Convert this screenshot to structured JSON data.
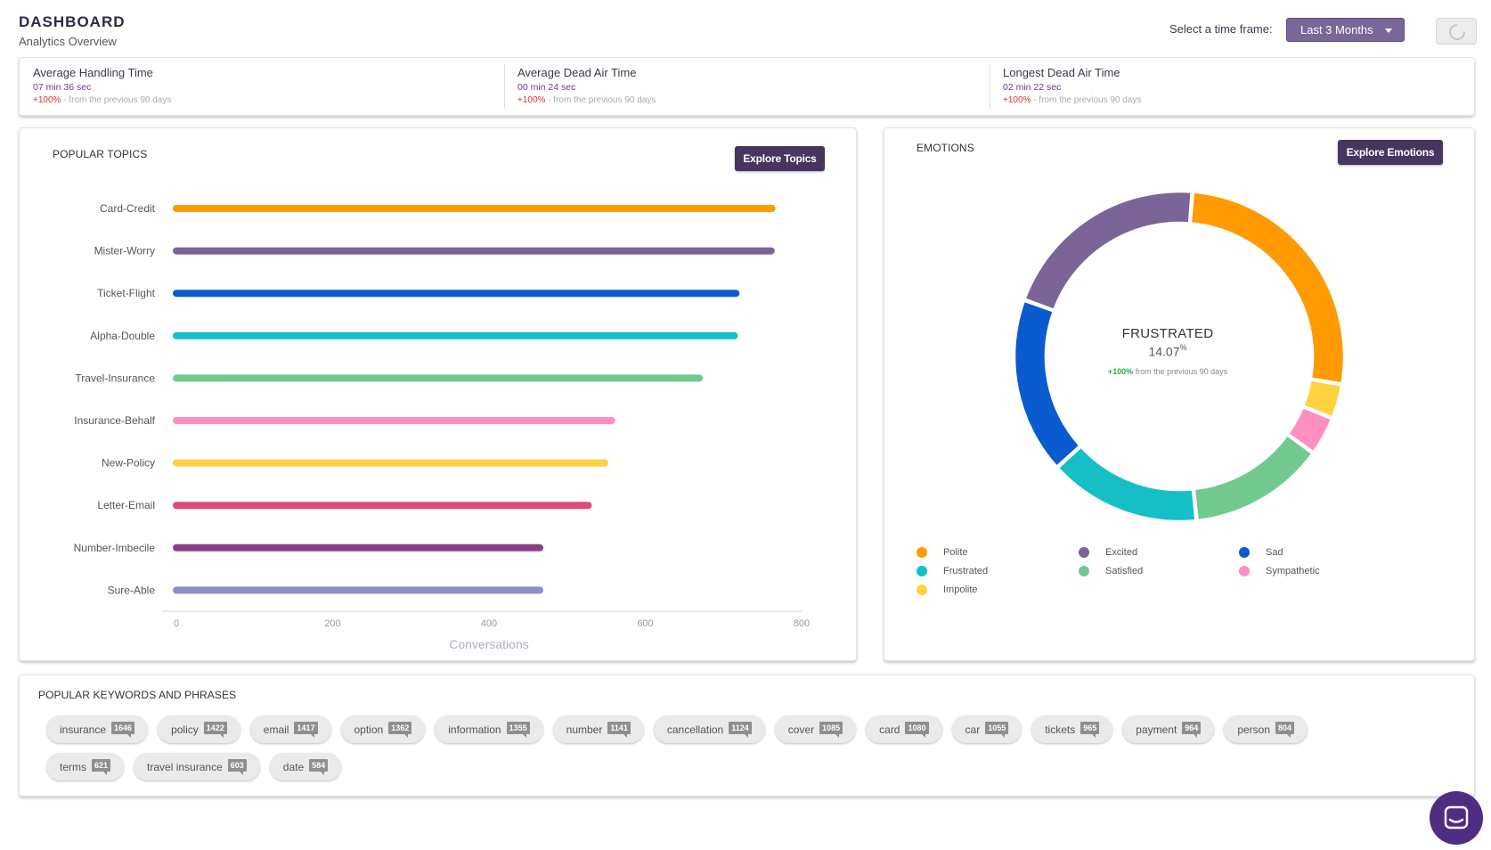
{
  "header": {
    "title": "DASHBOARD",
    "subtitle": "Analytics Overview"
  },
  "timeframe": {
    "label": "Select a time frame:",
    "selected": "Last 3 Months"
  },
  "kpis": [
    {
      "title": "Average Handling Time",
      "value": "07 min 36 sec",
      "change": "+100%",
      "change_note": " - from the previous 90 days"
    },
    {
      "title": "Average Dead Air Time",
      "value": "00 min 24 sec",
      "change": "+100%",
      "change_note": " - from the previous 90 days"
    },
    {
      "title": "Longest Dead Air Time",
      "value": "02 min 22 sec",
      "change": "+100%",
      "change_note": " - from the previous 90 days"
    }
  ],
  "topics": {
    "title": "POPULAR TOPICS",
    "button": "Explore Topics"
  },
  "emotions": {
    "title": "EMOTIONS",
    "button": "Explore Emotions",
    "center_label": "FRUSTRATED",
    "center_value": "14.07",
    "center_unit": "%",
    "center_change": "+100%",
    "center_change_note": "from the previous 90 days"
  },
  "keywords": {
    "title": "POPULAR KEYWORDS AND PHRASES",
    "items": [
      {
        "label": "insurance",
        "count": "1646"
      },
      {
        "label": "policy",
        "count": "1422"
      },
      {
        "label": "email",
        "count": "1417"
      },
      {
        "label": "option",
        "count": "1362"
      },
      {
        "label": "information",
        "count": "1355"
      },
      {
        "label": "number",
        "count": "1141"
      },
      {
        "label": "cancellation",
        "count": "1124"
      },
      {
        "label": "cover",
        "count": "1085"
      },
      {
        "label": "card",
        "count": "1080"
      },
      {
        "label": "car",
        "count": "1055"
      },
      {
        "label": "tickets",
        "count": "965"
      },
      {
        "label": "payment",
        "count": "964"
      },
      {
        "label": "person",
        "count": "804"
      },
      {
        "label": "terms",
        "count": "621"
      },
      {
        "label": "travel insurance",
        "count": "603"
      },
      {
        "label": "date",
        "count": "584"
      }
    ]
  },
  "icons": {
    "refresh": "spinner-icon",
    "chat": "chat-icon",
    "caret": "caret-down-icon"
  },
  "chart_data": [
    {
      "type": "bar",
      "orientation": "horizontal",
      "categories": [
        "Card-Credit",
        "Mister-Worry",
        "Ticket-Flight",
        "Alpha-Double",
        "Travel-Insurance",
        "Insurance-Behalf",
        "New-Policy",
        "Letter-Email",
        "Number-Imbecile",
        "Sure-Able"
      ],
      "values": [
        762,
        761,
        716,
        714,
        669,
        557,
        548,
        527,
        465,
        465
      ],
      "colors": [
        "#ff9900",
        "#7b6598",
        "#0b5bd0",
        "#15bfc5",
        "#71c98f",
        "#ff8ec3",
        "#ffd040",
        "#de4c76",
        "#8b3e88",
        "#8a8fc8"
      ],
      "xlabel": "Conversations",
      "xlim": [
        0,
        800
      ],
      "xticks": [
        0,
        200,
        400,
        600,
        800
      ]
    },
    {
      "type": "pie",
      "donut": true,
      "labels": [
        "Polite",
        "Impolite",
        "Sympathetic",
        "Satisfied",
        "Frustrated",
        "Sad",
        "Excited"
      ],
      "values": [
        24.9,
        3.2,
        3.6,
        12.6,
        14.07,
        16.3,
        19.5
      ],
      "colors": [
        "#ff9b00",
        "#ffd23f",
        "#ff8ec3",
        "#72c990",
        "#15bfc5",
        "#0b5bd0",
        "#7b6598"
      ],
      "legend": [
        {
          "name": "Polite",
          "color": "#ff9b00"
        },
        {
          "name": "Excited",
          "color": "#7b6598"
        },
        {
          "name": "Sad",
          "color": "#0b5bd0"
        },
        {
          "name": "Frustrated",
          "color": "#15bfc5"
        },
        {
          "name": "Satisfied",
          "color": "#72c990"
        },
        {
          "name": "Sympathetic",
          "color": "#ff8ec3"
        },
        {
          "name": "Impolite",
          "color": "#ffd23f"
        }
      ]
    }
  ]
}
